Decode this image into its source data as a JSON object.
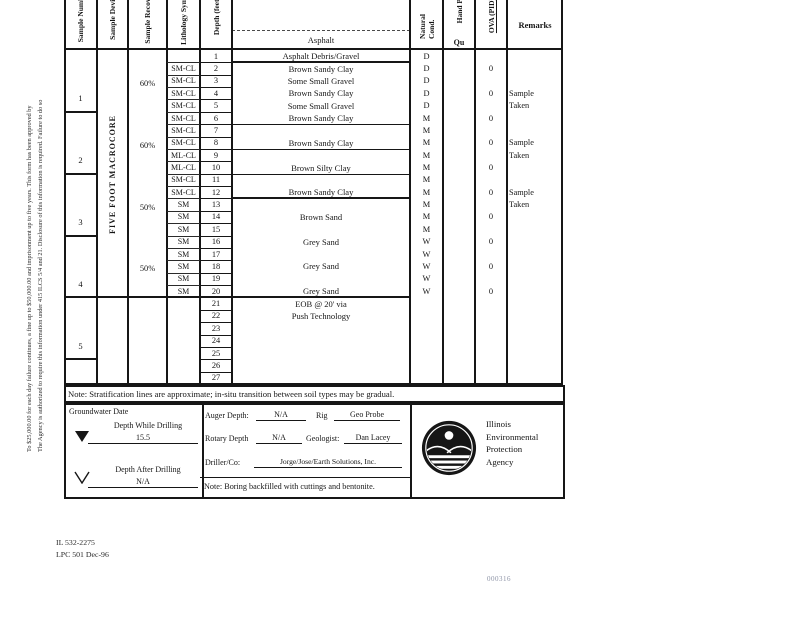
{
  "page": {
    "bates_number": "000316",
    "form_number": "IL 532-2275",
    "form_code": "LPC 501 Dec-96",
    "margin_text_line1": "To $25,000.00 for each day failure continues, a fine up to $50,000.00 and imprisonment up to five years.  This form has been approved by",
    "margin_text_line2": "The Agency is authorized to require this information under 415 ILCS 5/4 and 21.  Disclosure of this information is required.  Failure to do so"
  },
  "table": {
    "headers": {
      "sample_number": "Sample Number",
      "sample_device": "Sample Device",
      "sample_recovery": "Sample Recovery",
      "lithology": "Lithology Symbol",
      "depth": "Depth (feet)",
      "natural_condition": "Natural Cond.",
      "hand_p": "Hand P",
      "qu": "Qu",
      "ova_pid": "OVA (PID)",
      "remarks": "Remarks"
    },
    "surface_label": "Asphalt",
    "sample_device_label": "FIVE FOOT MACROCORE",
    "samples": [
      {
        "number": "1",
        "recovery": "60%"
      },
      {
        "number": "2",
        "recovery": "60%"
      },
      {
        "number": "3",
        "recovery": "50%"
      },
      {
        "number": "4",
        "recovery": "50%"
      },
      {
        "number": "5",
        "recovery": ""
      }
    ],
    "rows": [
      {
        "depth": "1",
        "lith": "",
        "desc": "Asphalt Debris/Gravel",
        "cond": "D",
        "ova": "",
        "remark": ""
      },
      {
        "depth": "2",
        "lith": "SM-CL",
        "desc": "Brown Sandy Clay",
        "cond": "D",
        "ova": "0",
        "remark": ""
      },
      {
        "depth": "3",
        "lith": "SM-CL",
        "desc": "Some Small Gravel",
        "cond": "D",
        "ova": "",
        "remark": ""
      },
      {
        "depth": "4",
        "lith": "SM-CL",
        "desc": "Brown Sandy Clay",
        "cond": "D",
        "ova": "0",
        "remark": "Sample"
      },
      {
        "depth": "5",
        "lith": "SM-CL",
        "desc": "Some Small Gravel",
        "cond": "D",
        "ova": "",
        "remark": "Taken"
      },
      {
        "depth": "6",
        "lith": "SM-CL",
        "desc": "Brown Sandy Clay",
        "cond": "M",
        "ova": "0",
        "remark": ""
      },
      {
        "depth": "7",
        "lith": "SM-CL",
        "desc": "",
        "cond": "M",
        "ova": "",
        "remark": ""
      },
      {
        "depth": "8",
        "lith": "SM-CL",
        "desc": "Brown Sandy Clay",
        "cond": "M",
        "ova": "0",
        "remark": "Sample"
      },
      {
        "depth": "9",
        "lith": "ML-CL",
        "desc": "",
        "cond": "M",
        "ova": "",
        "remark": "Taken"
      },
      {
        "depth": "10",
        "lith": "ML-CL",
        "desc": "Brown Silty Clay",
        "cond": "M",
        "ova": "0",
        "remark": ""
      },
      {
        "depth": "11",
        "lith": "SM-CL",
        "desc": "",
        "cond": "M",
        "ova": "",
        "remark": ""
      },
      {
        "depth": "12",
        "lith": "SM-CL",
        "desc": "Brown Sandy Clay",
        "cond": "M",
        "ova": "0",
        "remark": "Sample"
      },
      {
        "depth": "13",
        "lith": "SM",
        "desc": "",
        "cond": "M",
        "ova": "",
        "remark": "Taken"
      },
      {
        "depth": "14",
        "lith": "SM",
        "desc": "Brown Sand",
        "cond": "M",
        "ova": "0",
        "remark": ""
      },
      {
        "depth": "15",
        "lith": "SM",
        "desc": "",
        "cond": "M",
        "ova": "",
        "remark": ""
      },
      {
        "depth": "16",
        "lith": "SM",
        "desc": "Grey Sand",
        "cond": "W",
        "ova": "0",
        "remark": ""
      },
      {
        "depth": "17",
        "lith": "SM",
        "desc": "",
        "cond": "W",
        "ova": "",
        "remark": ""
      },
      {
        "depth": "18",
        "lith": "SM",
        "desc": "Grey Sand",
        "cond": "W",
        "ova": "0",
        "remark": ""
      },
      {
        "depth": "19",
        "lith": "SM",
        "desc": "",
        "cond": "W",
        "ova": "",
        "remark": ""
      },
      {
        "depth": "20",
        "lith": "SM",
        "desc": "Grey Sand",
        "cond": "W",
        "ova": "0",
        "remark": ""
      },
      {
        "depth": "21",
        "lith": "",
        "desc": "EOB @ 20' via",
        "cond": "",
        "ova": "",
        "remark": ""
      },
      {
        "depth": "22",
        "lith": "",
        "desc": "Push Technology",
        "cond": "",
        "ova": "",
        "remark": ""
      },
      {
        "depth": "23",
        "lith": "",
        "desc": "",
        "cond": "",
        "ova": "",
        "remark": ""
      },
      {
        "depth": "24",
        "lith": "",
        "desc": "",
        "cond": "",
        "ova": "",
        "remark": ""
      },
      {
        "depth": "25",
        "lith": "",
        "desc": "",
        "cond": "",
        "ova": "",
        "remark": ""
      },
      {
        "depth": "26",
        "lith": "",
        "desc": "",
        "cond": "",
        "ova": "",
        "remark": ""
      },
      {
        "depth": "27",
        "lith": "",
        "desc": "",
        "cond": "",
        "ova": "",
        "remark": ""
      }
    ],
    "note": "Note: Stratification lines are approximate; in-situ transition between soil types may be gradual."
  },
  "groundwater": {
    "title": "Groundwater Date",
    "while_label": "Depth While Drilling",
    "while_value": "15.5",
    "after_label": "Depth After Drilling",
    "after_value": "N/A"
  },
  "drilling": {
    "auger_label": "Auger Depth:",
    "auger_value": "N/A",
    "rig_label": "Rig",
    "rig_value": "Geo Probe",
    "rotary_label": "Rotary Depth",
    "rotary_value": "N/A",
    "geologist_label": "Geologist:",
    "geologist_value": "Dan Lacey",
    "driller_label": "Driller/Co:",
    "driller_value": "Jorge/Jose/Earth Solutions, Inc.",
    "note": "Note: Boring backfilled with cuttings and bentonite."
  },
  "agency": {
    "line1": "Illinois",
    "line2": "Environmental",
    "line3": "Protection",
    "line4": "Agency"
  }
}
